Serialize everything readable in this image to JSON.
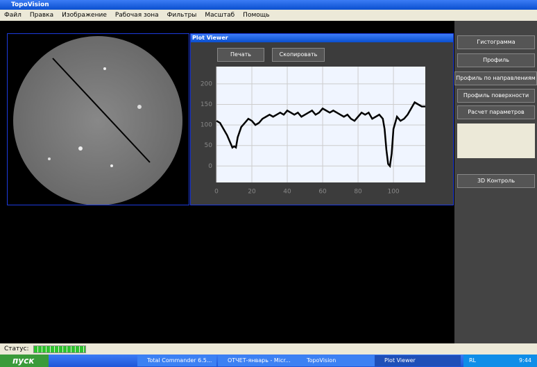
{
  "window": {
    "title": "TopoVision",
    "menu": [
      "Файл",
      "Правка",
      "Изображение",
      "Рабочая зона",
      "Фильтры",
      "Масштаб",
      "Помощь"
    ]
  },
  "plot_viewer": {
    "title": "Plot Viewer",
    "buttons": [
      "Печать",
      "Скопировать"
    ]
  },
  "side_buttons": [
    "Гистограмма",
    "Профиль",
    "Профиль по направлениям",
    "Профиль поверхности",
    "Расчет параметров"
  ],
  "side_bottom_button": "3D Контроль",
  "status": {
    "label": "Статус:"
  },
  "taskbar": {
    "start": "пуск",
    "tasks": [
      "Total Commander 6.5...",
      "ОТЧЕТ-январь - Micr...",
      "TopoVision",
      "Plot Viewer"
    ],
    "lang": "RL",
    "time": "9:44"
  },
  "chart_data": {
    "type": "line",
    "color": "#000000",
    "x": [
      0,
      2,
      4,
      6,
      8,
      9,
      10,
      11,
      12,
      14,
      16,
      18,
      20,
      22,
      24,
      26,
      28,
      30,
      32,
      34,
      36,
      38,
      40,
      42,
      44,
      46,
      48,
      50,
      52,
      54,
      56,
      58,
      60,
      62,
      64,
      66,
      68,
      70,
      72,
      74,
      76,
      78,
      80,
      82,
      84,
      86,
      88,
      90,
      92,
      94,
      95,
      96,
      97,
      98,
      99,
      100,
      102,
      104,
      106,
      108,
      110,
      112,
      114,
      116,
      118
    ],
    "values": [
      110,
      105,
      90,
      75,
      55,
      45,
      48,
      45,
      70,
      95,
      105,
      115,
      110,
      100,
      105,
      115,
      120,
      125,
      120,
      125,
      130,
      125,
      135,
      130,
      125,
      130,
      120,
      125,
      130,
      135,
      125,
      130,
      140,
      135,
      130,
      135,
      130,
      125,
      120,
      125,
      115,
      110,
      120,
      130,
      125,
      130,
      115,
      120,
      125,
      115,
      90,
      40,
      5,
      0,
      30,
      90,
      120,
      110,
      115,
      125,
      140,
      155,
      150,
      145,
      145
    ],
    "xlim": [
      0,
      118
    ],
    "ylim": [
      -40,
      242
    ],
    "xticks": [
      0,
      20,
      40,
      60,
      80,
      100
    ],
    "yticks": [
      0,
      50,
      100,
      150,
      200
    ],
    "grid": true
  }
}
